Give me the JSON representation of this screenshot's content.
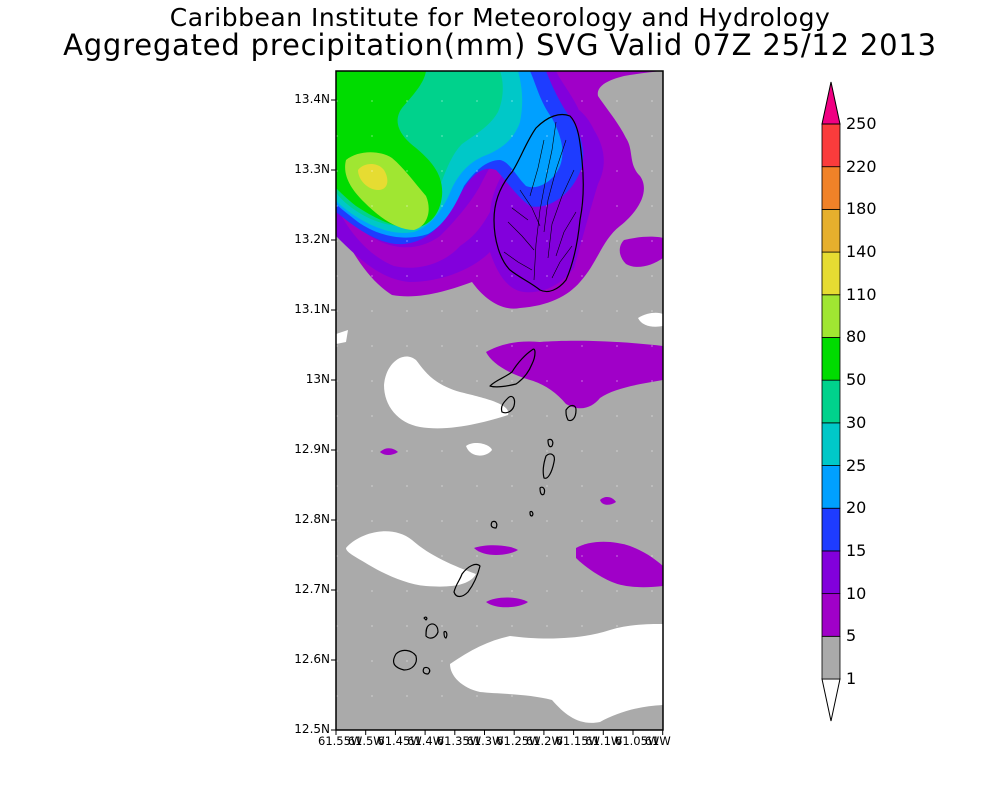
{
  "title": {
    "line1": "Caribbean Institute for Meteorology and Hydrology",
    "line2": "Aggregated precipitation(mm) SVG Valid 07Z 25/12 2013"
  },
  "map": {
    "lat_labels": [
      "13.4N",
      "13.3N",
      "13.2N",
      "13.1N",
      "13N",
      "12.9N",
      "12.8N",
      "12.7N",
      "12.6N",
      "12.5N"
    ],
    "lon_labels": [
      "61.55W",
      "61.5W",
      "61.45W",
      "61.4W",
      "61.35W",
      "61.3W",
      "61.25W",
      "61.2W",
      "61.15W",
      "61.1W",
      "61.05W",
      "61W"
    ],
    "lat_range": [
      12.5,
      13.44
    ],
    "lon_range": [
      -61.55,
      -61.0
    ],
    "background_color": "#aaaaaa",
    "dry_color": "#ffffff"
  },
  "colorbar": {
    "levels": [
      "1",
      "5",
      "10",
      "15",
      "20",
      "25",
      "30",
      "50",
      "80",
      "110",
      "140",
      "180",
      "220",
      "250"
    ],
    "colors": [
      "#aaaaaa",
      "#a000c8",
      "#8200dc",
      "#1e3cff",
      "#00a0ff",
      "#00c8c8",
      "#00d28c",
      "#00dc00",
      "#a0e632",
      "#e6dc32",
      "#e6af2d",
      "#f08228",
      "#fa3c3c",
      "#f00082"
    ]
  }
}
